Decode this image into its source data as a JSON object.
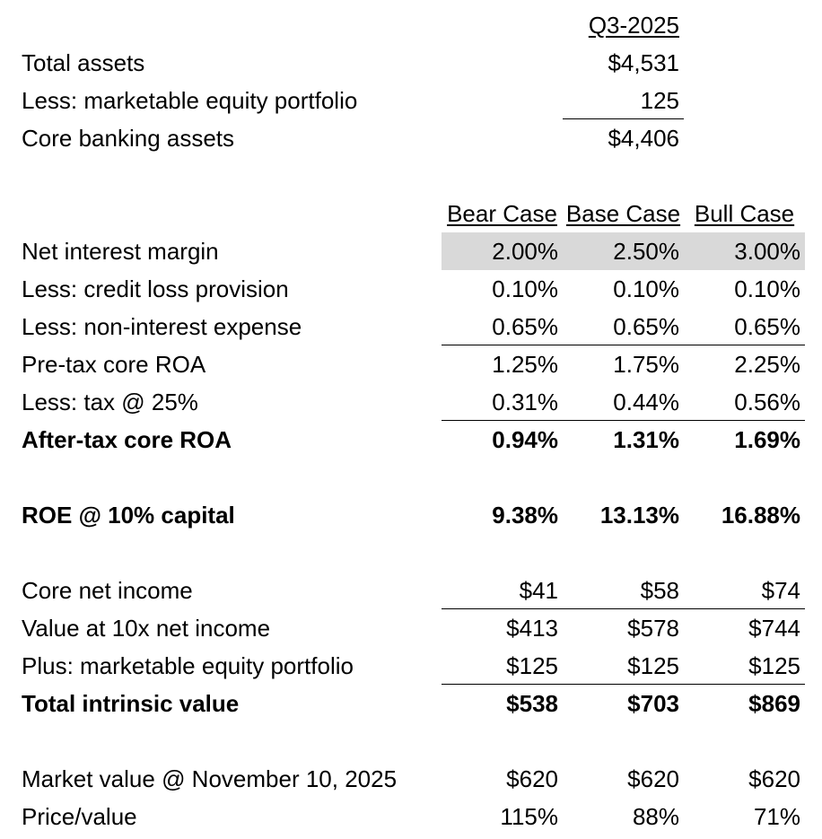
{
  "top": {
    "period": "Q3-2025",
    "rows": [
      {
        "label": "Total assets",
        "value": "$4,531"
      },
      {
        "label": "Less: marketable equity portfolio",
        "value": "125"
      },
      {
        "label": "Core banking assets",
        "value": "$4,406"
      }
    ]
  },
  "scenarios": {
    "headers": [
      "Bear Case",
      "Base Case",
      "Bull Case"
    ],
    "rows": [
      {
        "label": "Net interest margin",
        "values": [
          "2.00%",
          "2.50%",
          "3.00%"
        ]
      },
      {
        "label": "Less: credit loss provision",
        "values": [
          "0.10%",
          "0.10%",
          "0.10%"
        ]
      },
      {
        "label": "Less: non-interest expense",
        "values": [
          "0.65%",
          "0.65%",
          "0.65%"
        ]
      },
      {
        "label": "Pre-tax core ROA",
        "values": [
          "1.25%",
          "1.75%",
          "2.25%"
        ]
      },
      {
        "label": "Less: tax @ 25%",
        "values": [
          "0.31%",
          "0.44%",
          "0.56%"
        ]
      },
      {
        "label": "After-tax core ROA",
        "values": [
          "0.94%",
          "1.31%",
          "1.69%"
        ]
      },
      {
        "label": "ROE @ 10% capital",
        "values": [
          "9.38%",
          "13.13%",
          "16.88%"
        ]
      },
      {
        "label": "Core net income",
        "values": [
          "$41",
          "$58",
          "$74"
        ]
      },
      {
        "label": "Value at 10x net income",
        "values": [
          "$413",
          "$578",
          "$744"
        ]
      },
      {
        "label": "Plus: marketable equity portfolio",
        "values": [
          "$125",
          "$125",
          "$125"
        ]
      },
      {
        "label": "Total intrinsic value",
        "values": [
          "$538",
          "$703",
          "$869"
        ]
      },
      {
        "label": "Market value @ November 10, 2025",
        "values": [
          "$620",
          "$620",
          "$620"
        ]
      },
      {
        "label": "Price/value",
        "values": [
          "115%",
          "88%",
          "71%"
        ]
      }
    ]
  },
  "colors": {
    "input_shade": "#d9d9d9"
  }
}
